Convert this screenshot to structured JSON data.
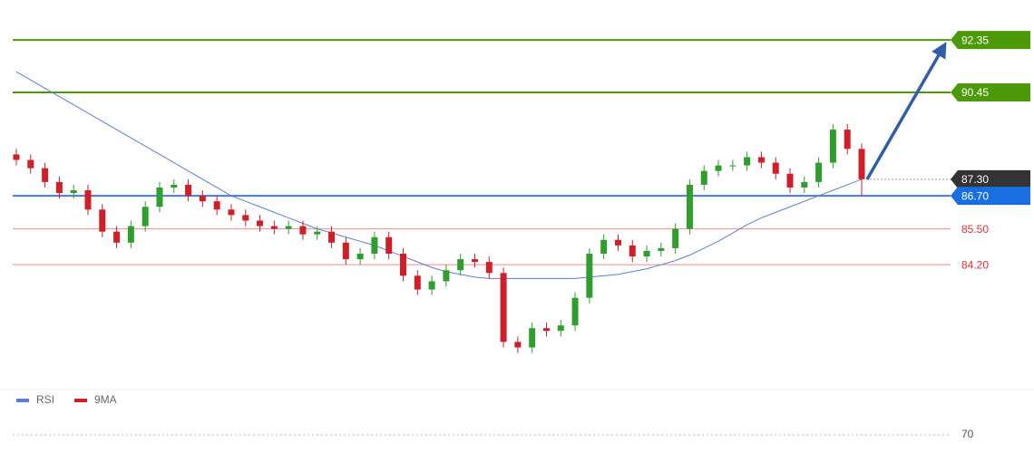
{
  "chart_data": {
    "type": "candlestick",
    "ylim": [
      80,
      93.8
    ],
    "up_color": "#2f9e2f",
    "down_color": "#d11f2a",
    "open": [
      88.2,
      88.0,
      87.7,
      87.2,
      86.8,
      86.9,
      86.2,
      85.4,
      85.0,
      85.6,
      86.3,
      87.0,
      87.1,
      86.7,
      86.5,
      86.2,
      86.0,
      85.8,
      85.6,
      85.5,
      85.6,
      85.3,
      85.4,
      85.0,
      84.4,
      84.6,
      85.2,
      84.6,
      83.8,
      83.3,
      83.6,
      84.0,
      84.4,
      84.3,
      83.9,
      81.4,
      81.2,
      81.9,
      81.8,
      82.0,
      83.0,
      84.6,
      85.1,
      84.9,
      84.5,
      84.7,
      84.8,
      85.5,
      87.1,
      87.6,
      87.8,
      87.8,
      88.1,
      87.9,
      87.5,
      87.0,
      87.2,
      87.9,
      89.1,
      88.4
    ],
    "high": [
      88.4,
      88.2,
      87.9,
      87.4,
      87.1,
      87.1,
      86.4,
      85.6,
      85.8,
      86.5,
      87.2,
      87.3,
      87.3,
      86.9,
      86.7,
      86.4,
      86.2,
      86.0,
      85.8,
      85.8,
      85.8,
      85.6,
      85.6,
      85.2,
      84.8,
      85.4,
      85.4,
      84.8,
      84.0,
      83.8,
      84.2,
      84.6,
      84.6,
      84.5,
      84.1,
      81.6,
      82.1,
      82.1,
      82.2,
      83.2,
      84.8,
      85.3,
      85.3,
      85.1,
      84.9,
      85.0,
      85.7,
      87.3,
      87.8,
      88.0,
      88.0,
      88.3,
      88.3,
      88.1,
      87.7,
      87.4,
      88.1,
      89.3,
      89.3,
      88.6
    ],
    "low": [
      87.8,
      87.5,
      87.0,
      86.6,
      86.6,
      86.0,
      85.2,
      84.8,
      84.8,
      85.4,
      86.1,
      86.8,
      86.5,
      86.3,
      86.0,
      85.8,
      85.6,
      85.4,
      85.3,
      85.3,
      85.1,
      85.1,
      84.8,
      84.2,
      84.2,
      84.4,
      84.4,
      83.6,
      83.1,
      83.1,
      83.4,
      83.8,
      84.1,
      83.7,
      81.2,
      81.0,
      81.0,
      81.6,
      81.6,
      81.8,
      82.8,
      84.4,
      84.7,
      84.3,
      84.3,
      84.5,
      84.6,
      85.3,
      86.9,
      87.4,
      87.6,
      87.6,
      87.7,
      87.3,
      86.8,
      86.8,
      87.0,
      87.7,
      88.2,
      86.7
    ],
    "close": [
      88.0,
      87.7,
      87.2,
      86.8,
      86.9,
      86.2,
      85.4,
      85.0,
      85.6,
      86.3,
      87.0,
      87.1,
      86.7,
      86.5,
      86.2,
      86.0,
      85.8,
      85.6,
      85.5,
      85.6,
      85.3,
      85.4,
      85.0,
      84.4,
      84.6,
      85.2,
      84.6,
      83.8,
      83.3,
      83.6,
      84.0,
      84.4,
      84.3,
      83.9,
      81.4,
      81.2,
      81.9,
      81.8,
      82.0,
      83.0,
      84.6,
      85.1,
      84.9,
      84.5,
      84.7,
      84.8,
      85.5,
      87.1,
      87.6,
      87.8,
      87.8,
      88.1,
      87.9,
      87.5,
      87.0,
      87.2,
      87.9,
      89.1,
      88.4,
      87.3
    ],
    "ma": {
      "color": "#5b7fcf",
      "values": [
        91.2,
        90.9,
        90.6,
        90.3,
        90.0,
        89.7,
        89.4,
        89.1,
        88.8,
        88.5,
        88.2,
        87.9,
        87.6,
        87.3,
        87.0,
        86.7,
        86.5,
        86.3,
        86.1,
        85.9,
        85.7,
        85.5,
        85.35,
        85.2,
        85.05,
        84.9,
        84.7,
        84.5,
        84.3,
        84.1,
        83.95,
        83.85,
        83.75,
        83.7,
        83.7,
        83.7,
        83.7,
        83.7,
        83.7,
        83.7,
        83.75,
        83.8,
        83.85,
        83.95,
        84.05,
        84.2,
        84.35,
        84.55,
        84.8,
        85.05,
        85.35,
        85.65,
        85.9,
        86.1,
        86.3,
        86.5,
        86.7,
        86.9,
        87.1,
        87.3
      ]
    },
    "levels": [
      {
        "value": 92.35,
        "color": "#4c9a0a",
        "label_bg": "#4c9a0a"
      },
      {
        "value": 90.45,
        "color": "#4c9a0a",
        "label_bg": "#4c9a0a"
      },
      {
        "value": 87.3,
        "label": "87.30",
        "color": "#999999",
        "label_bg": "#333333"
      },
      {
        "value": 86.7,
        "label": "86.70",
        "color": "#4a78d8",
        "label_bg": "#1a6fe0"
      },
      {
        "value": 85.5,
        "label": "85.50",
        "color": "#f08a8a"
      },
      {
        "value": 84.2,
        "label": "84.20",
        "color": "#f08a8a"
      }
    ],
    "indicator": {
      "legend": [
        {
          "name": "RSI",
          "color": "#5b7fcf"
        },
        {
          "name": "9MA",
          "color": "#d11f2a"
        }
      ],
      "ylim": [
        65,
        75
      ],
      "yticks": [
        70
      ]
    }
  }
}
